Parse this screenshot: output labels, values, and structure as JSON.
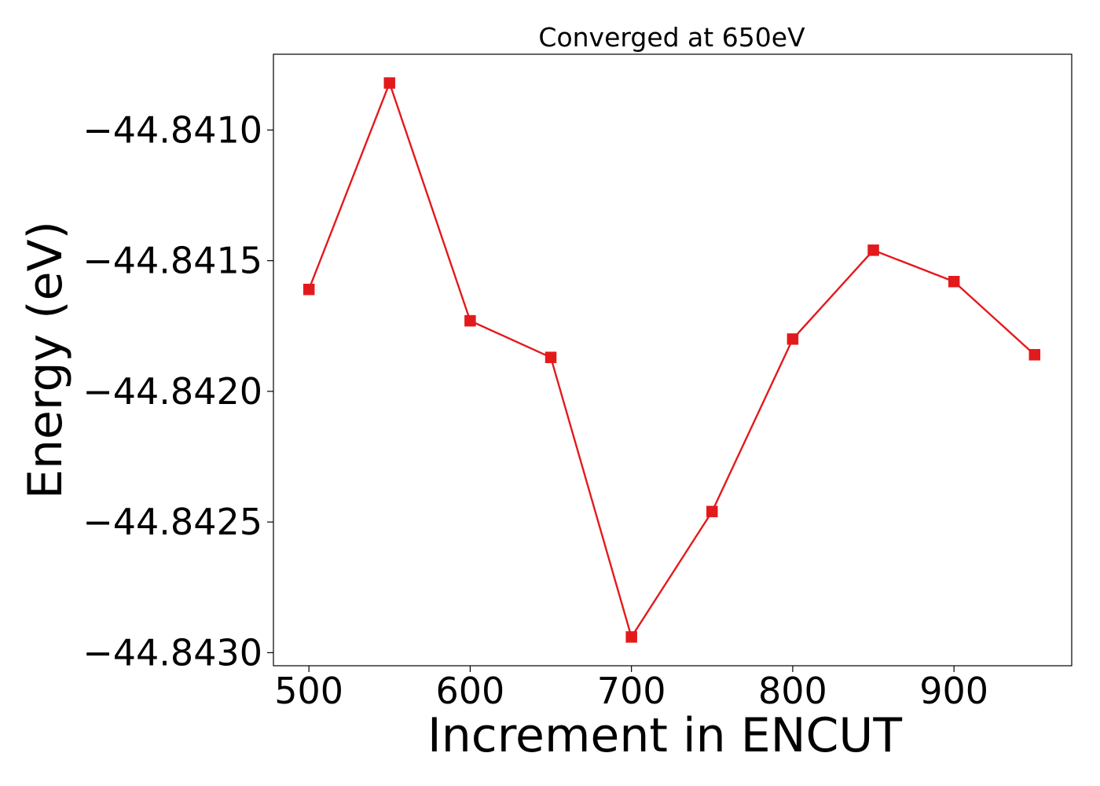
{
  "chart_data": {
    "type": "line",
    "title": "Converged at 650eV",
    "xlabel": "Increment in ENCUT",
    "ylabel": "Energy (eV)",
    "xlim": [
      478,
      973
    ],
    "ylim": [
      -44.84305,
      -44.84071
    ],
    "x_ticks": [
      500,
      600,
      700,
      800,
      900
    ],
    "x_tick_labels": [
      "500",
      "600",
      "700",
      "800",
      "900"
    ],
    "y_ticks": [
      -44.841,
      -44.8415,
      -44.842,
      -44.8425,
      -44.843
    ],
    "y_tick_labels": [
      "−44.8410",
      "−44.8415",
      "−44.8420",
      "−44.8425",
      "−44.8430"
    ],
    "grid": false,
    "legend": "none",
    "series": [
      {
        "color": "#e31a1c",
        "marker": "square",
        "x": [
          500,
          550,
          600,
          650,
          700,
          750,
          800,
          850,
          900,
          950
        ],
        "y": [
          -44.84161,
          -44.84082,
          -44.84173,
          -44.84187,
          -44.84294,
          -44.84246,
          -44.8418,
          -44.84146,
          -44.84158,
          -44.84186
        ]
      }
    ]
  }
}
